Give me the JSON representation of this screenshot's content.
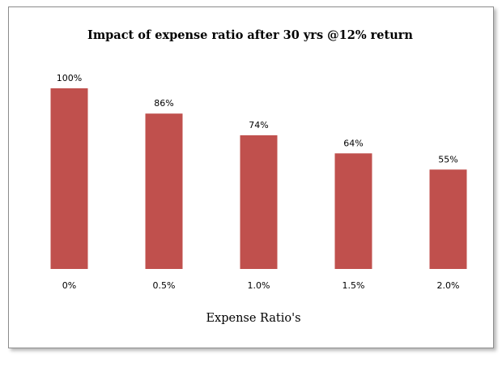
{
  "chart_data": {
    "type": "bar",
    "title": "Impact of expense ratio after 30 yrs @12% return",
    "xlabel": "Expense Ratio's",
    "ylabel": "",
    "categories": [
      "0%",
      "0.5%",
      "1.0%",
      "1.5%",
      "2.0%"
    ],
    "values": [
      100,
      86,
      74,
      64,
      55
    ],
    "data_labels": [
      "100%",
      "86%",
      "74%",
      "64%",
      "55%"
    ],
    "ylim": [
      0,
      100
    ],
    "grid": false,
    "legend": "none",
    "y_axis_visible": false,
    "bar_color": "#c0504d"
  }
}
